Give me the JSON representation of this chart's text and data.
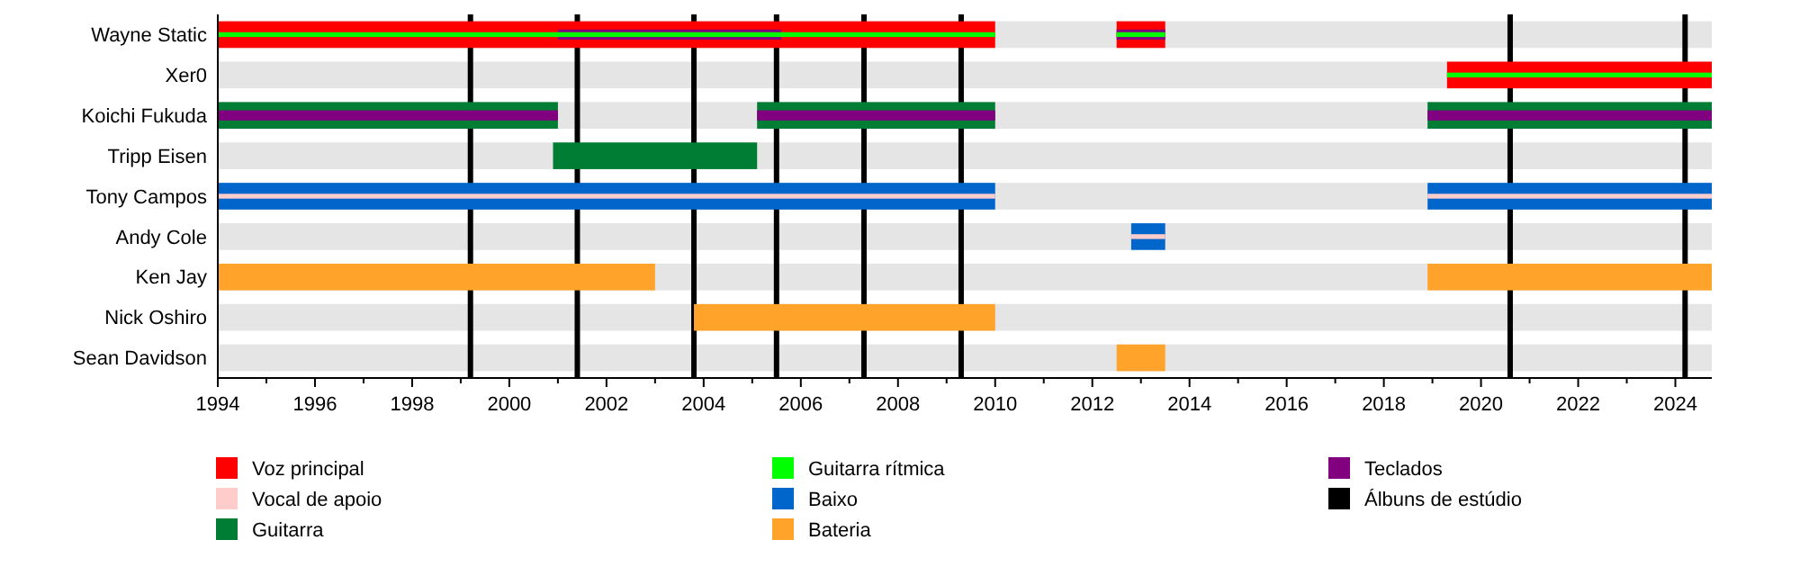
{
  "chart_data": {
    "type": "bar",
    "orientation": "horizontal",
    "legend": "bottom",
    "categories": [
      "Wayne Static",
      "Xer0",
      "Koichi Fukuda",
      "Tripp Eisen",
      "Tony Campos",
      "Andy Cole",
      "Ken Jay",
      "Nick Oshiro",
      "Sean Davidson"
    ],
    "xlim": [
      1994,
      2024.75
    ],
    "xticks": [
      1994,
      {
        "value": 1995,
        "label": null
      },
      1996,
      {
        "value": 1997,
        "label": null
      },
      1998,
      {
        "value": 1999,
        "label": null
      },
      2000,
      {
        "value": 2001,
        "label": null
      },
      2002,
      {
        "value": 2003,
        "label": null
      },
      2004,
      {
        "value": 2005,
        "label": null
      },
      2006,
      {
        "value": 2007,
        "label": null
      },
      2008,
      {
        "value": 2009,
        "label": null
      },
      2010,
      {
        "value": 2011,
        "label": null
      },
      2012,
      {
        "value": 2013,
        "label": null
      },
      2014,
      {
        "value": 2015,
        "label": null
      },
      2016,
      {
        "value": 2017,
        "label": null
      },
      2018,
      {
        "value": 2019,
        "label": null
      },
      2020,
      {
        "value": 2021,
        "label": null
      },
      2022,
      {
        "value": 2023,
        "label": null
      },
      2024
    ],
    "series": [
      {
        "name": "Voz principal",
        "color": "#ff0000",
        "base": [
          1994,
          2019.3,
          null,
          null,
          null,
          null,
          null,
          null,
          null
        ],
        "values": [
          16,
          5.45,
          null,
          null,
          null,
          null,
          null,
          null,
          null
        ]
      },
      {
        "name": "Vocal de apoio",
        "color": "#ffcccc",
        "base": [
          null,
          null,
          null,
          null,
          1994,
          2012.8,
          null,
          null,
          null
        ],
        "values": [
          null,
          null,
          null,
          null,
          16,
          0.7,
          null,
          null,
          null
        ]
      },
      {
        "name": "Guitarra",
        "color": "#007d34",
        "base": [
          null,
          null,
          1994,
          2000.9,
          null,
          null,
          null,
          null,
          null
        ],
        "values": [
          null,
          null,
          7,
          4.2,
          null,
          null,
          null,
          null,
          null
        ]
      },
      {
        "name": "Guitarra rítmica",
        "color": "#00ff00",
        "base": [
          1994,
          2019.3,
          null,
          null,
          null,
          null,
          null,
          null,
          null
        ],
        "values": [
          16,
          5.45,
          null,
          null,
          null,
          null,
          null,
          null,
          null
        ]
      },
      {
        "name": "Baixo",
        "color": "#0066cc",
        "base": [
          null,
          null,
          null,
          null,
          1994,
          2012.8,
          null,
          null,
          null
        ],
        "values": [
          null,
          null,
          null,
          null,
          16,
          0.7,
          null,
          null,
          null
        ]
      },
      {
        "name": "Bateria",
        "color": "#ffa32b",
        "base": [
          null,
          null,
          null,
          null,
          null,
          null,
          1994,
          2003.8,
          2012.5
        ],
        "values": [
          null,
          null,
          null,
          null,
          null,
          null,
          9,
          6.2,
          1
        ]
      },
      {
        "name": "Teclados",
        "color": "#800080",
        "base": [
          2001,
          null,
          1994,
          null,
          null,
          null,
          null,
          null,
          null
        ],
        "values": [
          4.6,
          null,
          7,
          null,
          null,
          null,
          null,
          null,
          null
        ]
      },
      {
        "color": "#ff0000",
        "base": [
          2012.5,
          null,
          null,
          null,
          null,
          null,
          null,
          null,
          null
        ],
        "values": [
          1,
          null,
          null,
          null,
          null,
          null,
          null,
          null,
          null
        ]
      },
      {
        "color": "#ffcccc",
        "base": [
          null,
          null,
          null,
          null,
          2018.9,
          null,
          null,
          null,
          null
        ],
        "values": [
          null,
          null,
          null,
          null,
          5.85,
          null,
          null,
          null,
          null
        ]
      },
      {
        "color": "#007d34",
        "base": [
          null,
          null,
          2005.1,
          null,
          null,
          null,
          null,
          null,
          null
        ],
        "values": [
          null,
          null,
          4.9,
          null,
          null,
          null,
          null,
          null,
          null
        ]
      },
      {
        "color": "#007d34",
        "base": [
          null,
          null,
          2018.9,
          null,
          null,
          null,
          null,
          null,
          null
        ],
        "values": [
          null,
          null,
          5.85,
          null,
          null,
          null,
          null,
          null,
          null
        ]
      },
      {
        "color": "#00ff00",
        "base": [
          2012.5,
          null,
          null,
          null,
          null,
          null,
          null,
          null,
          null
        ],
        "values": [
          1,
          null,
          null,
          null,
          null,
          null,
          null,
          null,
          null
        ]
      },
      {
        "color": "#0066cc",
        "base": [
          null,
          null,
          null,
          null,
          2018.9,
          null,
          null,
          null,
          null
        ],
        "values": [
          null,
          null,
          null,
          null,
          5.85,
          null,
          null,
          null,
          null
        ]
      },
      {
        "color": "#ffa32b",
        "base": [
          null,
          null,
          null,
          null,
          null,
          null,
          2018.9,
          null,
          null
        ],
        "values": [
          null,
          null,
          null,
          null,
          null,
          null,
          5.85,
          null,
          null
        ]
      },
      {
        "color": "#800080",
        "base": [
          2012.5,
          null,
          2005.1,
          null,
          null,
          null,
          null,
          null,
          null
        ],
        "values": [
          1,
          null,
          4.9,
          null,
          null,
          null,
          null,
          null,
          null
        ]
      },
      {
        "color": "#800080",
        "base": [
          null,
          null,
          2018.9,
          null,
          null,
          null,
          null,
          null,
          null
        ],
        "values": [
          null,
          null,
          5.85,
          null,
          null,
          null,
          null,
          null,
          null
        ]
      }
    ],
    "ref_lines": [
      {
        "axis": "x",
        "value": 1999.2,
        "label": "Álbuns de estúdio",
        "color": "#000000"
      },
      {
        "axis": "x",
        "value": 2001.4,
        "color": "#000000"
      },
      {
        "axis": "x",
        "value": 2003.8,
        "color": "#000000"
      },
      {
        "axis": "x",
        "value": 2005.5,
        "color": "#000000"
      },
      {
        "axis": "x",
        "value": 2007.3,
        "color": "#000000"
      },
      {
        "axis": "x",
        "value": 2009.3,
        "color": "#000000"
      },
      {
        "axis": "x",
        "value": 2020.6,
        "color": "#000000"
      },
      {
        "axis": "x",
        "value": 2024.2,
        "color": "#000000"
      }
    ]
  }
}
